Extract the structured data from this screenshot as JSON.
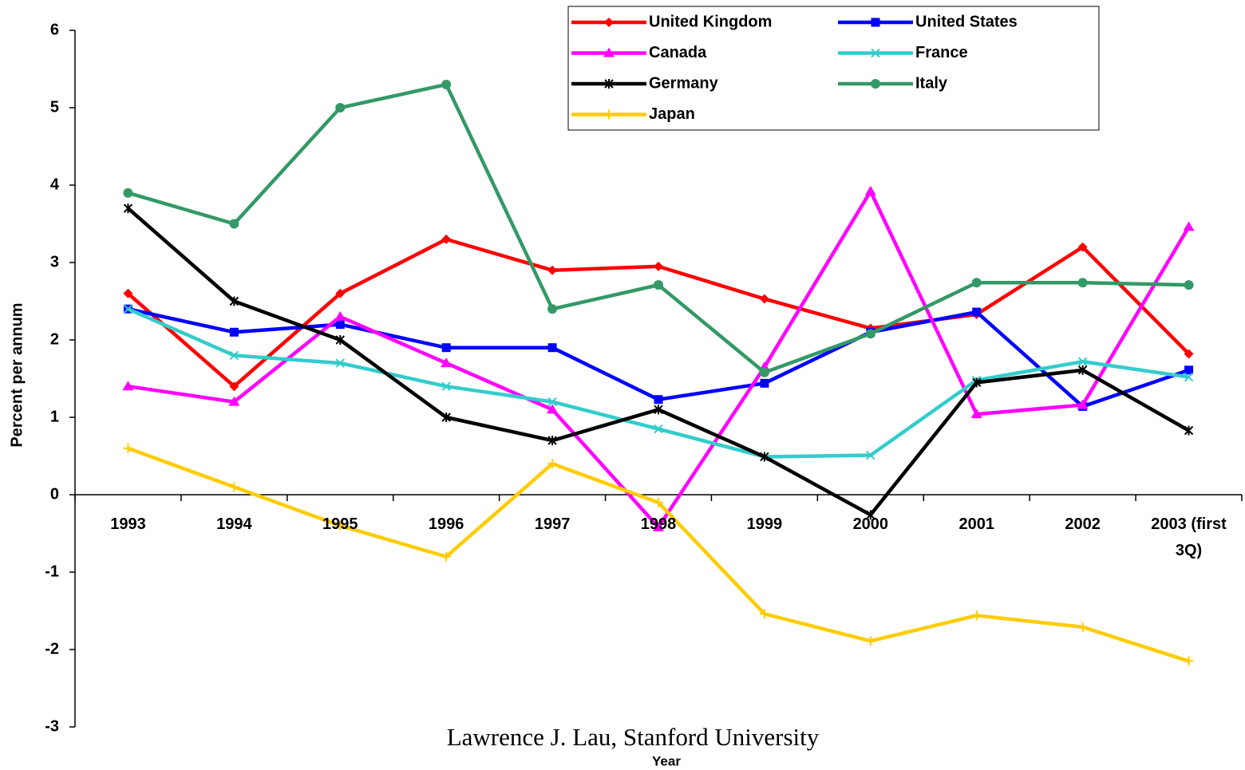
{
  "chart_data": {
    "type": "line",
    "x_label": "Year",
    "y_label": "Percent per annum",
    "footer": "Lawrence J. Lau, Stanford University",
    "categories": [
      "1993",
      "1994",
      "1995",
      "1996",
      "1997",
      "1998",
      "1999",
      "2000",
      "2001",
      "2002",
      "2003 (first 3Q)"
    ],
    "series": [
      {
        "name": "United Kingdom",
        "color": "#ff0000",
        "marker": "diamond",
        "values": [
          2.6,
          1.4,
          2.6,
          3.3,
          2.9,
          2.95,
          2.53,
          2.15,
          2.33,
          3.2,
          1.82
        ]
      },
      {
        "name": "United States",
        "color": "#0000ff",
        "marker": "square",
        "values": [
          2.4,
          2.1,
          2.2,
          1.9,
          1.9,
          1.23,
          1.44,
          2.1,
          2.36,
          1.14,
          1.61
        ]
      },
      {
        "name": "Canada",
        "color": "#ff00ff",
        "marker": "triangle",
        "values": [
          1.4,
          1.2,
          2.3,
          1.7,
          1.1,
          -0.42,
          1.65,
          3.92,
          1.04,
          1.16,
          3.46
        ]
      },
      {
        "name": "France",
        "color": "#33cccc",
        "marker": "x",
        "values": [
          2.4,
          1.8,
          1.7,
          1.4,
          1.2,
          0.85,
          0.49,
          0.51,
          1.48,
          1.72,
          1.52
        ]
      },
      {
        "name": "Germany",
        "color": "#000000",
        "marker": "asterisk",
        "values": [
          3.7,
          2.5,
          2.0,
          1.0,
          0.7,
          1.1,
          0.49,
          -0.26,
          1.45,
          1.61,
          0.83
        ]
      },
      {
        "name": "Italy",
        "color": "#339966",
        "marker": "circle",
        "values": [
          3.9,
          3.5,
          5.0,
          5.3,
          2.4,
          2.71,
          1.58,
          2.08,
          2.74,
          2.74,
          2.71
        ]
      },
      {
        "name": "Japan",
        "color": "#ffcc00",
        "marker": "plus",
        "values": [
          0.6,
          0.1,
          -0.4,
          -0.8,
          0.4,
          -0.1,
          -1.54,
          -1.89,
          -1.56,
          -1.71,
          -2.15
        ]
      }
    ],
    "ylim": [
      -3,
      6
    ],
    "yticks": [
      -3,
      -2,
      -1,
      0,
      1,
      2,
      3,
      4,
      5,
      6
    ],
    "legend": "top-right"
  }
}
